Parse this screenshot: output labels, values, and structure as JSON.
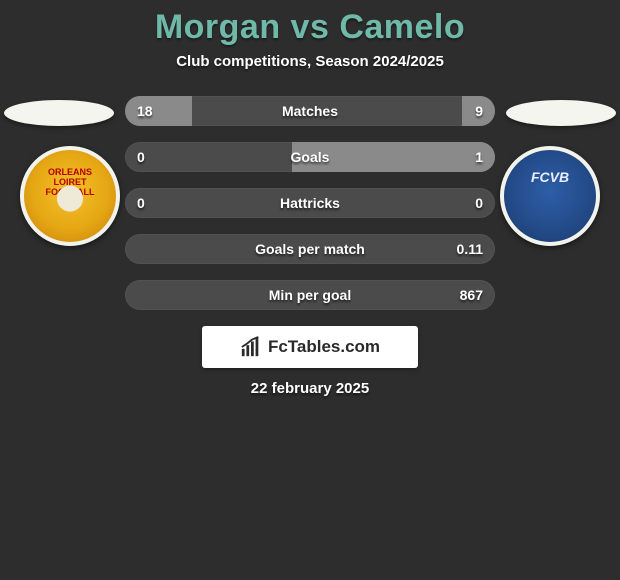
{
  "title": "Morgan vs Camelo",
  "title_color": "#6fb9a9",
  "subtitle": "Club competitions, Season 2024/2025",
  "background_color": "#2d2d2d",
  "bar_track_color": "#4b4b4b",
  "bar_fill_color": "#8a8a8a",
  "bar_text_color": "#ffffff",
  "rows": [
    {
      "label": "Matches",
      "left": "18",
      "right": "9",
      "left_pct": 18,
      "right_pct": 9
    },
    {
      "label": "Goals",
      "left": "0",
      "right": "1",
      "left_pct": 0,
      "right_pct": 55
    },
    {
      "label": "Hattricks",
      "left": "0",
      "right": "0",
      "left_pct": 0,
      "right_pct": 0
    },
    {
      "label": "Goals per match",
      "left": "",
      "right": "0.11",
      "left_pct": 0,
      "right_pct": 0
    },
    {
      "label": "Min per goal",
      "left": "",
      "right": "867",
      "left_pct": 0,
      "right_pct": 0
    }
  ],
  "left_team": {
    "badge_text_line1": "ORLEANS",
    "badge_text_line2": "LOIRET",
    "badge_text_line3": "FOOTBALL",
    "badge_bg": "#e5a714",
    "badge_border": "#f3f3ee"
  },
  "right_team": {
    "badge_text": "FCVB",
    "badge_bg": "#234a87",
    "badge_border": "#f3f3ee"
  },
  "brand_text": "FcTables.com",
  "date_text": "22 february 2025"
}
